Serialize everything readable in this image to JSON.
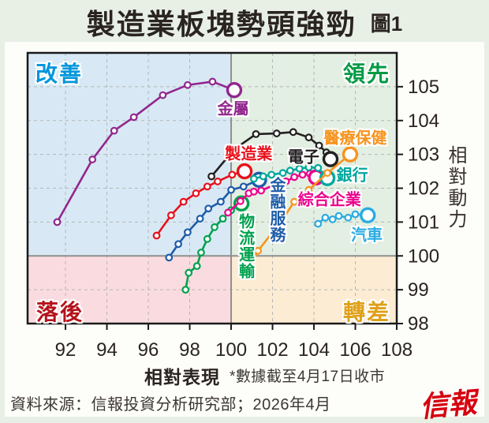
{
  "page": {
    "bg": "#e8efe5",
    "panel_bg": "#fdfdfa"
  },
  "header": {
    "title": "製造業板塊勢頭強勁",
    "figure_label": "圖1"
  },
  "footer": {
    "x_axis_label": "相對表現",
    "footnote": "*數據截至4月17日收市",
    "source": "資料來源：信報投資分析研究部；2026年4月",
    "logo": "信報",
    "logo_color": "#d6000f"
  },
  "chart_data": {
    "type": "scatter",
    "title": "製造業板塊勢頭強勁",
    "xlabel": "相對表現",
    "ylabel": "相對動力",
    "xlim": [
      90.2,
      108
    ],
    "ylim": [
      98,
      106
    ],
    "x_ticks": [
      92,
      94,
      96,
      98,
      100,
      102,
      104,
      106,
      108
    ],
    "y_ticks": [
      98,
      99,
      100,
      101,
      102,
      103,
      104,
      105
    ],
    "grid_x": [
      92,
      94,
      96,
      98,
      102,
      104,
      106
    ],
    "grid_y": [
      99,
      101,
      102,
      103,
      104,
      105
    ],
    "center_x": 100,
    "center_y": 100,
    "grid_color": "#b5b5b5",
    "center_line_color": "#8f8f8f",
    "axis_color": "#1a1a1a",
    "tick_label_color": "#2a2421",
    "quadrants": {
      "top_left": {
        "label": "改善",
        "color": "#0096dc",
        "bg": "#d8e9f5"
      },
      "top_right": {
        "label": "領先",
        "color": "#009a44",
        "bg": "#e2efe2"
      },
      "bottom_left": {
        "label": "落後",
        "color": "#b5121b",
        "bg": "#fadce0"
      },
      "bottom_right": {
        "label": "轉差",
        "color": "#dfa019",
        "bg": "#fcecd3"
      }
    },
    "marker_note": "last point of each series is the large open circle (latest reading)",
    "series": [
      {
        "name": "金屬",
        "name_en": "metals",
        "color": "#91278d",
        "points": [
          [
            91.6,
            101.0
          ],
          [
            93.3,
            102.85
          ],
          [
            94.35,
            103.7
          ],
          [
            95.3,
            104.1
          ],
          [
            96.7,
            104.75
          ],
          [
            97.9,
            105.05
          ],
          [
            99.1,
            105.15
          ],
          [
            100.15,
            104.9
          ]
        ],
        "label_at": [
          100.1,
          104.32
        ],
        "label_orient": "horizontal"
      },
      {
        "name": "金融服務",
        "name_en": "financial-services",
        "color": "#1e5ca8",
        "points": [
          [
            97.0,
            99.95
          ],
          [
            97.45,
            100.35
          ],
          [
            97.9,
            100.7
          ],
          [
            98.5,
            101.1
          ],
          [
            98.9,
            101.4
          ],
          [
            99.5,
            101.6
          ],
          [
            100.0,
            101.95
          ],
          [
            100.6,
            102.05
          ],
          [
            101.35,
            102.25
          ]
        ],
        "label_at": [
          102.15,
          101.35
        ],
        "label_orient": "vertical"
      },
      {
        "name": "物流運輸",
        "name_en": "logistics",
        "color": "#00a14e",
        "points": [
          [
            97.8,
            99.0
          ],
          [
            97.95,
            99.5
          ],
          [
            98.35,
            99.7
          ],
          [
            98.55,
            100.1
          ],
          [
            98.85,
            100.5
          ],
          [
            99.2,
            100.85
          ],
          [
            99.6,
            101.1
          ],
          [
            100.0,
            101.35
          ],
          [
            100.5,
            101.55
          ]
        ],
        "label_at": [
          100.65,
          100.28
        ],
        "label_orient": "vertical"
      },
      {
        "name": "綜合企業",
        "name_en": "conglomerates",
        "color": "#ec008c",
        "points": [
          [
            99.85,
            101.28
          ],
          [
            100.45,
            101.62
          ],
          [
            100.85,
            101.85
          ],
          [
            101.1,
            101.9
          ],
          [
            101.45,
            101.93
          ],
          [
            102.1,
            102.1
          ],
          [
            102.65,
            102.2
          ],
          [
            103.05,
            102.33
          ],
          [
            103.45,
            102.4
          ],
          [
            103.8,
            102.43
          ],
          [
            104.1,
            102.32
          ]
        ],
        "label_at": [
          104.75,
          101.65
        ],
        "label_orient": "horizontal"
      },
      {
        "name": "銀行",
        "name_en": "banks",
        "color": "#00a79d",
        "points": [
          [
            101.1,
            102.28
          ],
          [
            101.55,
            102.35
          ],
          [
            101.95,
            102.4
          ],
          [
            102.5,
            102.45
          ],
          [
            102.85,
            102.52
          ],
          [
            103.3,
            102.58
          ],
          [
            103.75,
            102.62
          ],
          [
            104.2,
            102.6
          ],
          [
            104.65,
            102.3
          ]
        ],
        "label_at": [
          105.85,
          102.35
        ],
        "label_orient": "horizontal"
      },
      {
        "name": "製造業",
        "name_en": "manufacturing",
        "color": "#e8111c",
        "points": [
          [
            96.4,
            100.6
          ],
          [
            97.1,
            101.2
          ],
          [
            97.7,
            101.6
          ],
          [
            98.3,
            101.85
          ],
          [
            98.85,
            102.05
          ],
          [
            99.35,
            102.2
          ],
          [
            100.05,
            102.4
          ],
          [
            100.65,
            102.5
          ]
        ],
        "label_at": [
          100.85,
          103.0
        ],
        "label_orient": "horizontal"
      },
      {
        "name": "電子",
        "name_en": "electronics",
        "color": "#232020",
        "points": [
          [
            99.05,
            102.35
          ],
          [
            100.15,
            103.15
          ],
          [
            101.2,
            103.6
          ],
          [
            102.2,
            103.62
          ],
          [
            103.0,
            103.66
          ],
          [
            103.75,
            103.5
          ],
          [
            104.25,
            103.26
          ],
          [
            104.6,
            103.06
          ],
          [
            104.8,
            102.86
          ]
        ],
        "label_at": [
          103.5,
          102.9
        ],
        "label_orient": "horizontal"
      },
      {
        "name": "醫療保健",
        "name_en": "healthcare",
        "color": "#f7941e",
        "points": [
          [
            100.65,
            99.4
          ],
          [
            101.3,
            100.15
          ],
          [
            102.45,
            101.05
          ],
          [
            103.05,
            101.6
          ],
          [
            103.75,
            101.95
          ],
          [
            104.65,
            102.45
          ],
          [
            105.75,
            103.0
          ]
        ],
        "label_at": [
          106.0,
          103.45
        ],
        "label_orient": "horizontal"
      },
      {
        "name": "汽車",
        "name_en": "autos",
        "color": "#2aabe2",
        "points": [
          [
            104.2,
            100.95
          ],
          [
            104.55,
            101.13
          ],
          [
            104.9,
            101.08
          ],
          [
            105.2,
            101.18
          ],
          [
            105.65,
            101.13
          ],
          [
            106.0,
            101.23
          ],
          [
            106.6,
            101.2
          ]
        ],
        "label_at": [
          106.55,
          100.6
        ],
        "label_orient": "horizontal"
      }
    ]
  }
}
